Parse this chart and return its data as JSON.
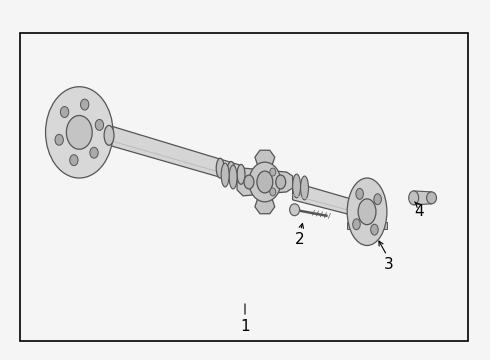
{
  "bg_color": "#f5f5f5",
  "border_color": "#000000",
  "line_color": "#555555",
  "label_color": "#000000",
  "shaft_fc": "#d8d8d8",
  "joint_fc": "#cccccc",
  "flange_fc": "#d0d0d0",
  "bolt_fc": "#c0c0c0",
  "hole_fc": "#aaaaaa"
}
